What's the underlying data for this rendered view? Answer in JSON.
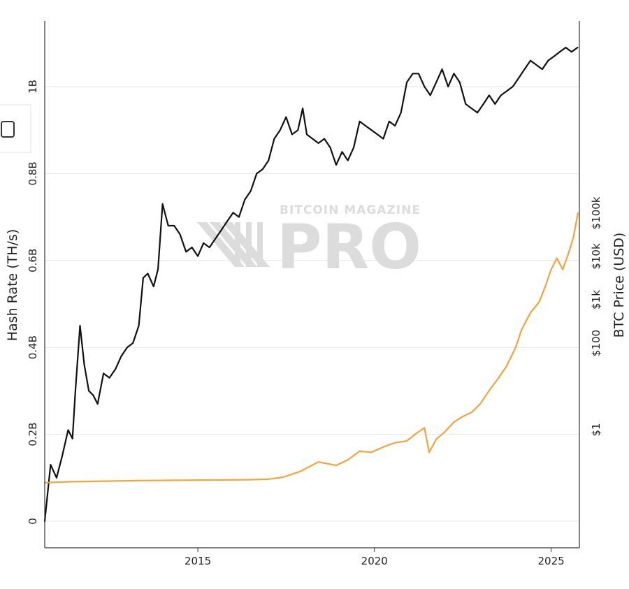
{
  "chart_data": {
    "type": "line",
    "title": "",
    "xlabel": "",
    "ylabel": "Hash Rate (TH/s)",
    "y2label": "BTC Price (USD)",
    "xlim": [
      "2010-09-01",
      "2025-10-20"
    ],
    "x_ticks": [
      "2015",
      "2020",
      "2025"
    ],
    "ylim": [
      0,
      1000000000
    ],
    "y_ticks": [
      "0",
      "0.2B",
      "0.4B",
      "0.6B",
      "0.8B",
      "1B"
    ],
    "y2_scale": "log",
    "y2_ticks": [
      "$1",
      "$100",
      "$1k",
      "$10k",
      "$100k"
    ],
    "grid": true,
    "legend": "none",
    "watermark": {
      "line1": "BITCOIN MAGAZINE",
      "line2": "PRO"
    },
    "series": [
      {
        "axis": "left",
        "color": "#111111",
        "x": [
          "2010-09-01",
          "2010-11-01",
          "2011-01-01",
          "2011-03-01",
          "2011-05-01",
          "2011-06-15",
          "2011-07-15",
          "2011-09-01",
          "2011-10-15",
          "2011-12-01",
          "2012-01-15",
          "2012-03-01",
          "2012-05-01",
          "2012-07-01",
          "2012-09-01",
          "2012-11-01",
          "2013-01-01",
          "2013-03-01",
          "2013-05-01",
          "2013-06-15",
          "2013-08-01",
          "2013-10-01",
          "2013-11-15",
          "2014-01-01",
          "2014-03-01",
          "2014-05-01",
          "2014-07-01",
          "2014-09-01",
          "2014-11-01",
          "2015-01-01",
          "2015-03-01",
          "2015-05-01",
          "2015-07-01",
          "2015-09-01",
          "2015-11-01",
          "2016-01-01",
          "2016-03-01",
          "2016-05-01",
          "2016-07-01",
          "2016-09-01",
          "2016-11-01",
          "2017-01-01",
          "2017-03-01",
          "2017-05-01",
          "2017-07-01",
          "2017-09-01",
          "2017-11-01",
          "2017-12-20",
          "2018-02-01",
          "2018-04-01",
          "2018-06-01",
          "2018-08-01",
          "2018-10-01",
          "2018-12-01",
          "2019-02-01",
          "2019-04-01",
          "2019-06-01",
          "2019-08-01",
          "2019-10-01",
          "2019-12-01",
          "2020-02-01",
          "2020-04-01",
          "2020-06-01",
          "2020-08-01",
          "2020-10-01",
          "2020-12-01",
          "2021-02-01",
          "2021-04-01",
          "2021-06-01",
          "2021-08-01",
          "2021-10-01",
          "2021-12-01",
          "2022-02-01",
          "2022-04-01",
          "2022-06-01",
          "2022-08-01",
          "2022-10-01",
          "2022-12-01",
          "2023-02-01",
          "2023-04-01",
          "2023-06-01",
          "2023-08-01",
          "2023-10-01",
          "2023-12-01",
          "2024-02-01",
          "2024-04-01",
          "2024-06-01",
          "2024-08-01",
          "2024-10-01",
          "2024-12-01",
          "2025-02-01",
          "2025-04-01",
          "2025-06-01",
          "2025-08-01",
          "2025-10-01"
        ],
        "values": [
          0,
          130000000,
          100000000,
          150000000,
          210000000,
          190000000,
          300000000,
          450000000,
          360000000,
          300000000,
          290000000,
          270000000,
          340000000,
          330000000,
          350000000,
          380000000,
          400000000,
          410000000,
          450000000,
          560000000,
          570000000,
          540000000,
          580000000,
          730000000,
          680000000,
          680000000,
          660000000,
          620000000,
          630000000,
          610000000,
          640000000,
          630000000,
          650000000,
          670000000,
          690000000,
          710000000,
          700000000,
          740000000,
          760000000,
          800000000,
          810000000,
          830000000,
          880000000,
          900000000,
          930000000,
          890000000,
          900000000,
          950000000,
          890000000,
          880000000,
          870000000,
          880000000,
          860000000,
          820000000,
          850000000,
          830000000,
          860000000,
          920000000,
          910000000,
          900000000,
          890000000,
          880000000,
          920000000,
          910000000,
          940000000,
          1010000000,
          1030000000,
          1030000000,
          1000000000,
          980000000,
          1010000000,
          1040000000,
          1000000000,
          1030000000,
          1010000000,
          960000000,
          950000000,
          940000000,
          960000000,
          980000000,
          960000000,
          980000000,
          990000000,
          1000000000,
          1020000000,
          1040000000,
          1060000000,
          1050000000,
          1040000000,
          1060000000,
          1070000000,
          1080000000,
          1090000000,
          1080000000,
          1090000000
        ]
      },
      {
        "axis": "right",
        "color": "#f0a43c",
        "x": [
          "2010-09-01",
          "2011-06-01",
          "2012-06-01",
          "2013-06-01",
          "2014-06-01",
          "2015-06-01",
          "2016-06-01",
          "2017-01-01",
          "2017-06-01",
          "2017-12-01",
          "2018-06-01",
          "2018-12-01",
          "2019-04-01",
          "2019-08-01",
          "2019-12-01",
          "2020-04-01",
          "2020-08-01",
          "2020-12-01",
          "2021-03-01",
          "2021-06-01",
          "2021-07-20",
          "2021-10-01",
          "2022-01-01",
          "2022-04-01",
          "2022-07-01",
          "2022-10-01",
          "2023-01-01",
          "2023-04-01",
          "2023-07-01",
          "2023-10-01",
          "2024-01-01",
          "2024-03-01",
          "2024-06-01",
          "2024-09-01",
          "2024-11-01",
          "2025-01-01",
          "2025-03-01",
          "2025-05-01",
          "2025-07-01",
          "2025-08-20",
          "2025-10-05"
        ],
        "values": [
          0.06,
          0.063,
          0.065,
          0.067,
          0.068,
          0.069,
          0.07,
          0.072,
          0.08,
          0.11,
          0.18,
          0.15,
          0.2,
          0.32,
          0.3,
          0.4,
          0.5,
          0.55,
          0.8,
          1.1,
          0.3,
          0.6,
          0.9,
          1.5,
          2.0,
          2.5,
          4.0,
          8,
          15,
          30,
          80,
          200,
          500,
          900,
          2000,
          5000,
          9000,
          5000,
          12000,
          28000,
          100000
        ]
      }
    ]
  }
}
